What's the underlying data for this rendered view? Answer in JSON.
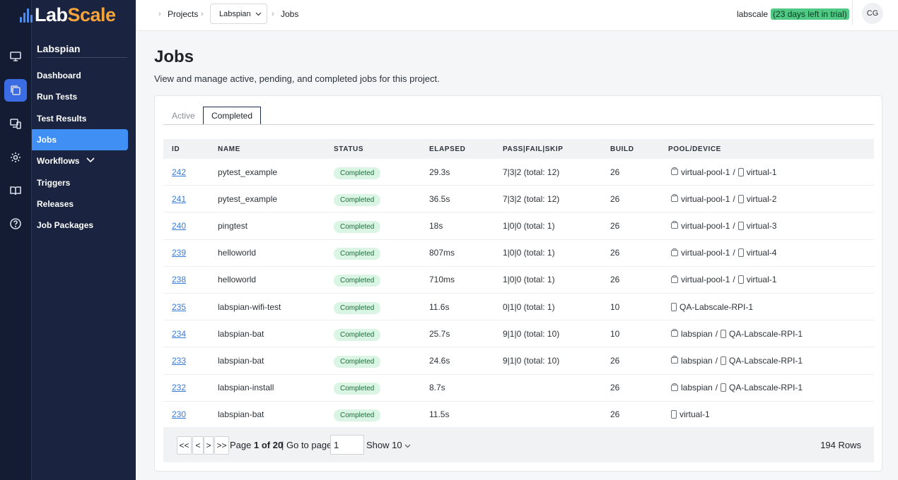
{
  "brand": {
    "part1": "Lab",
    "part2": "Scale"
  },
  "rail": {
    "icons": [
      "monitor-icon",
      "copy-icon",
      "devices-icon",
      "settings-icon",
      "book-icon",
      "help-icon"
    ],
    "active_index": 1
  },
  "sidebar": {
    "project": "Labspian",
    "items": [
      {
        "label": "Dashboard"
      },
      {
        "label": "Run Tests"
      },
      {
        "label": "Test Results"
      },
      {
        "label": "Jobs",
        "active": true
      },
      {
        "label": "Workflows"
      },
      {
        "label": "Triggers"
      },
      {
        "label": "Releases"
      },
      {
        "label": "Job Packages"
      }
    ]
  },
  "breadcrumb": {
    "projects": "Projects",
    "project_select": "Labspian",
    "current": "Jobs"
  },
  "account": {
    "name": "labscale",
    "trial": "(23 days left in trial)",
    "initials": "CG"
  },
  "page": {
    "title": "Jobs",
    "description": "View and manage active, pending, and completed jobs for this project."
  },
  "tabs": {
    "active": "Active",
    "completed": "Completed"
  },
  "table": {
    "headers": {
      "id": "ID",
      "name": "NAME",
      "status": "STATUS",
      "elapsed": "ELAPSED",
      "pfs": "PASS|FAIL|SKIP",
      "build": "BUILD",
      "pool": "POOL/DEVICE"
    },
    "rows": [
      {
        "id": "242",
        "name": "pytest_example",
        "status": "Completed",
        "elapsed": "29.3s",
        "pfs": "7|3|2 (total: 12)",
        "build": "26",
        "pool": "virtual-pool-1",
        "device": "virtual-1"
      },
      {
        "id": "241",
        "name": "pytest_example",
        "status": "Completed",
        "elapsed": "36.5s",
        "pfs": "7|3|2 (total: 12)",
        "build": "26",
        "pool": "virtual-pool-1",
        "device": "virtual-2"
      },
      {
        "id": "240",
        "name": "pingtest",
        "status": "Completed",
        "elapsed": "18s",
        "pfs": "1|0|0 (total: 1)",
        "build": "26",
        "pool": "virtual-pool-1",
        "device": "virtual-3"
      },
      {
        "id": "239",
        "name": "helloworld",
        "status": "Completed",
        "elapsed": "807ms",
        "pfs": "1|0|0 (total: 1)",
        "build": "26",
        "pool": "virtual-pool-1",
        "device": "virtual-4"
      },
      {
        "id": "238",
        "name": "helloworld",
        "status": "Completed",
        "elapsed": "710ms",
        "pfs": "1|0|0 (total: 1)",
        "build": "26",
        "pool": "virtual-pool-1",
        "device": "virtual-1"
      },
      {
        "id": "235",
        "name": "labspian-wifi-test",
        "status": "Completed",
        "elapsed": "11.6s",
        "pfs": "0|1|0 (total: 1)",
        "build": "10",
        "pool": "",
        "device": "QA-Labscale-RPI-1"
      },
      {
        "id": "234",
        "name": "labspian-bat",
        "status": "Completed",
        "elapsed": "25.7s",
        "pfs": "9|1|0 (total: 10)",
        "build": "10",
        "pool": "labspian",
        "device": "QA-Labscale-RPI-1"
      },
      {
        "id": "233",
        "name": "labspian-bat",
        "status": "Completed",
        "elapsed": "24.6s",
        "pfs": "9|1|0 (total: 10)",
        "build": "26",
        "pool": "labspian",
        "device": "QA-Labscale-RPI-1"
      },
      {
        "id": "232",
        "name": "labspian-install",
        "status": "Completed",
        "elapsed": "8.7s",
        "pfs": "",
        "build": "26",
        "pool": "labspian",
        "device": "QA-Labscale-RPI-1"
      },
      {
        "id": "230",
        "name": "labspian-bat",
        "status": "Completed",
        "elapsed": "11.5s",
        "pfs": "",
        "build": "26",
        "pool": "",
        "device": "virtual-1"
      }
    ]
  },
  "pager": {
    "first": "<<",
    "prev": "<",
    "next": ">",
    "last": ">>",
    "page_prefix": "Page",
    "page_value": "1 of 20",
    "goto_label": "| Go to page:",
    "goto_value": "1",
    "show": "Show 10",
    "rows": "194 Rows"
  }
}
